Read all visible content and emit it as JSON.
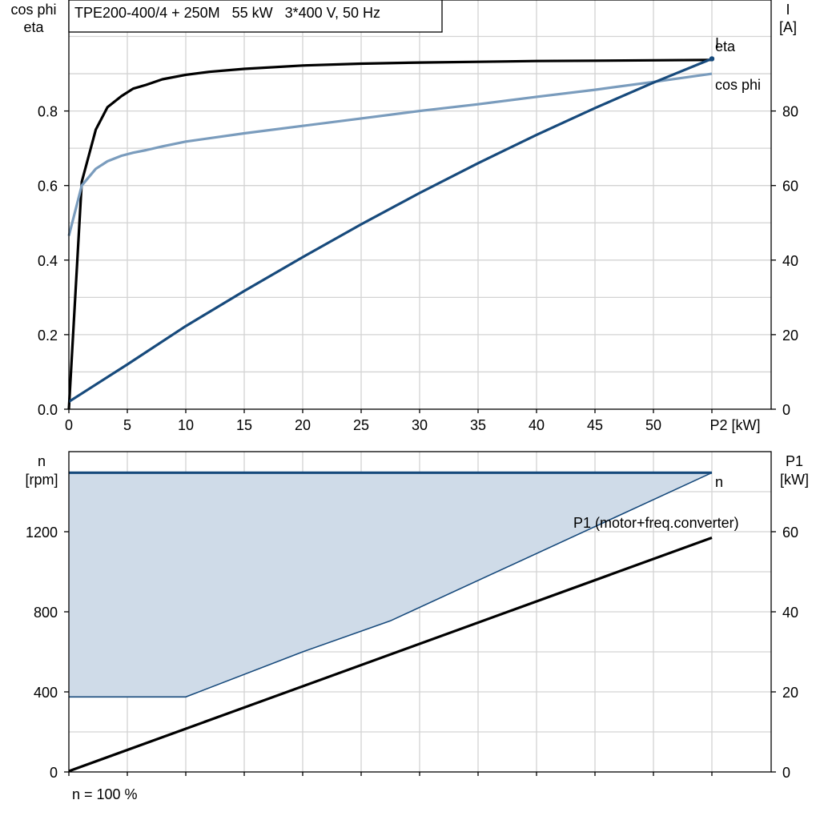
{
  "chart_data": [
    {
      "type": "line",
      "title": "TPE200-400/4 + 250M   55 kW   3*400 V, 50 Hz",
      "xlabel": "P2 [kW]",
      "ylabel_left": [
        "cos phi",
        "eta"
      ],
      "ylabel_right": [
        "I",
        "[A]"
      ],
      "xlim": [
        0,
        60
      ],
      "ylim_left": [
        0,
        1.0
      ],
      "ylim_right": [
        0,
        100
      ],
      "x_ticks": [
        "0",
        "5",
        "10",
        "15",
        "20",
        "25",
        "30",
        "35",
        "40",
        "45",
        "50"
      ],
      "y_ticks_left": [
        "0.0",
        "0.2",
        "0.4",
        "0.6",
        "0.8"
      ],
      "y_ticks_right": [
        "0",
        "20",
        "40",
        "60",
        "80"
      ],
      "grid": true,
      "series": [
        {
          "name": "eta",
          "axis": "left",
          "color": "#000000",
          "x": [
            0,
            1.1,
            2.3,
            3.3,
            4.5,
            5.5,
            6.6,
            8,
            10,
            12,
            15,
            20,
            25,
            30,
            35,
            40,
            45,
            50,
            55
          ],
          "y": [
            0.0,
            0.61,
            0.75,
            0.81,
            0.84,
            0.86,
            0.87,
            0.885,
            0.897,
            0.905,
            0.913,
            0.922,
            0.927,
            0.93,
            0.932,
            0.934,
            0.935,
            0.936,
            0.937
          ]
        },
        {
          "name": "cos phi",
          "axis": "left",
          "color": "#7a9cbd",
          "x": [
            0,
            1.1,
            2.3,
            3.3,
            4.5,
            5.5,
            6.6,
            8,
            10,
            15,
            20,
            25,
            30,
            35,
            40,
            45,
            50,
            55
          ],
          "y": [
            0.465,
            0.6,
            0.645,
            0.665,
            0.68,
            0.688,
            0.695,
            0.705,
            0.718,
            0.74,
            0.76,
            0.78,
            0.8,
            0.818,
            0.838,
            0.857,
            0.878,
            0.9
          ]
        },
        {
          "name": "I",
          "axis": "right",
          "color": "#174a7c",
          "x": [
            0,
            5,
            10,
            15,
            20,
            25,
            30,
            35,
            40,
            45,
            50,
            55
          ],
          "y": [
            2,
            12,
            22.3,
            31.7,
            40.8,
            49.6,
            58,
            66,
            73.6,
            80.8,
            87.6,
            94
          ]
        }
      ]
    },
    {
      "type": "line",
      "xlim": [
        0,
        60
      ],
      "ylabel_left": [
        "n",
        "[rpm]"
      ],
      "ylabel_right": [
        "P1",
        "[kW]"
      ],
      "ylim_left": [
        0,
        1600
      ],
      "ylim_right": [
        0,
        80
      ],
      "y_ticks_left": [
        "0",
        "400",
        "800",
        "1200"
      ],
      "y_ticks_right": [
        "0",
        "20",
        "40",
        "60"
      ],
      "grid": true,
      "note": "n = 100 %",
      "series": [
        {
          "name": "n",
          "axis": "left",
          "color": "#174a7c",
          "x": [
            0,
            55
          ],
          "y": [
            1495,
            1495
          ]
        },
        {
          "name": "P1 (motor+freq.converter)",
          "axis": "right",
          "color": "#000000",
          "x": [
            0,
            55
          ],
          "y": [
            0.2,
            58.5
          ]
        }
      ],
      "shaded_region": {
        "color": "#cfdbe8",
        "edge_color": "#174a7c",
        "upper_y": 1495,
        "lower_x": [
          0,
          10,
          20,
          27.5,
          55
        ],
        "lower_y": [
          375,
          375,
          600,
          755,
          1495
        ]
      }
    }
  ]
}
